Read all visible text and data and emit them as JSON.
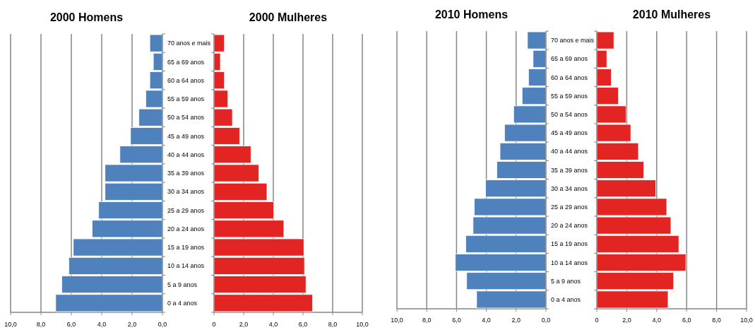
{
  "chart_data": [
    {
      "type": "bar",
      "orientation": "horizontal",
      "title": "2000 Homens",
      "categories": [
        "70 anos e mais",
        "65 a 69 anos",
        "60 a 64 anos",
        "55 a 59 anos",
        "50 a 54 anos",
        "45 a 49 anos",
        "40 a 44 anos",
        "35 a 39 anos",
        "30 a 34 anos",
        "25 a 29 anos",
        "20 a 24 anos",
        "15 a 19 anos",
        "10 a 14 anos",
        "5 a 9 anos",
        "0 a 4 anos"
      ],
      "values": [
        0.83,
        0.6,
        0.83,
        1.1,
        1.55,
        2.1,
        2.8,
        3.78,
        3.78,
        4.2,
        4.63,
        5.87,
        6.16,
        6.63,
        7.03
      ],
      "color": "#4f81bd",
      "xlim": [
        10,
        0
      ],
      "xticks": [
        {
          "value": 10,
          "label": "10,0"
        },
        {
          "value": 8,
          "label": "8,0"
        },
        {
          "value": 6,
          "label": "6,0"
        },
        {
          "value": 4,
          "label": "4,0"
        },
        {
          "value": 2,
          "label": "2,0"
        },
        {
          "value": 0,
          "label": "0,0"
        }
      ],
      "grid": "x"
    },
    {
      "type": "bar",
      "orientation": "horizontal",
      "title": "2000 Mulheres",
      "categories": [
        null,
        null,
        null,
        null,
        null,
        null,
        null,
        null,
        null,
        null,
        null,
        null,
        null,
        null,
        null
      ],
      "values": [
        0.7,
        0.43,
        0.7,
        0.94,
        1.24,
        1.73,
        2.49,
        3.03,
        3.57,
        4.02,
        4.71,
        6.06,
        6.1,
        6.2,
        6.65
      ],
      "color": "#e22522",
      "xlim": [
        0,
        10
      ],
      "xticks": [
        0,
        {
          "value": 2,
          "label": "2,0"
        },
        {
          "value": 4,
          "label": "4,0"
        },
        {
          "value": 6,
          "label": "6,0"
        },
        {
          "value": 8,
          "label": "8,0"
        },
        {
          "value": 10,
          "label": "10,0"
        }
      ],
      "grid": "x",
      "tick_labels": "x"
    },
    {
      "type": "bar",
      "orientation": "horizontal",
      "title": "2010 Homens",
      "categories": [
        "70 anos e mais",
        "65 a 69 anos",
        "60 a 64 anos",
        "55 a 59 anos",
        "50 a 54 anos",
        "45 a 49 anos",
        "40 a 44 anos",
        "35 a 39 anos",
        "30 a 34 anos",
        "25 a 29 anos",
        "20 a 24 anos",
        "15 a 19 anos",
        "10 a 14 anos",
        "5 a 9 anos",
        "0 a 4 anos"
      ],
      "values": [
        1.24,
        0.86,
        1.17,
        1.6,
        2.17,
        2.78,
        3.08,
        3.3,
        4.05,
        4.81,
        4.89,
        5.38,
        6.08,
        5.32,
        4.65
      ],
      "color": "#4f81bd",
      "xlim": [
        10,
        0
      ],
      "xticks": [
        {
          "value": 10,
          "label": "10,0"
        },
        {
          "value": 8,
          "label": "8,0"
        },
        {
          "value": 6,
          "label": "6,0"
        },
        {
          "value": 4,
          "label": "4,0"
        },
        {
          "value": 2,
          "label": "2,0"
        },
        {
          "value": 0,
          "label": "0,0"
        }
      ],
      "grid": "x"
    },
    {
      "type": "bar",
      "orientation": "horizontal",
      "title": "2010 Mulheres",
      "categories": [
        null,
        null,
        null,
        null,
        null,
        null,
        null,
        null,
        null,
        null,
        null,
        null,
        null,
        null,
        null
      ],
      "values": [
        1.14,
        0.67,
        0.97,
        1.44,
        1.97,
        2.27,
        2.78,
        3.14,
        3.94,
        4.67,
        4.95,
        5.48,
        5.95,
        5.13,
        4.76
      ],
      "color": "#e22522",
      "xlim": [
        0,
        10
      ],
      "xticks": [
        0,
        {
          "value": 2,
          "label": "2,0"
        },
        {
          "value": 4,
          "label": "4,0"
        },
        {
          "value": 6,
          "label": "6,0"
        },
        {
          "value": 8,
          "label": "8,0"
        },
        {
          "value": 10,
          "label": "10,0"
        }
      ],
      "grid": "x",
      "tick_labels": "x"
    }
  ]
}
